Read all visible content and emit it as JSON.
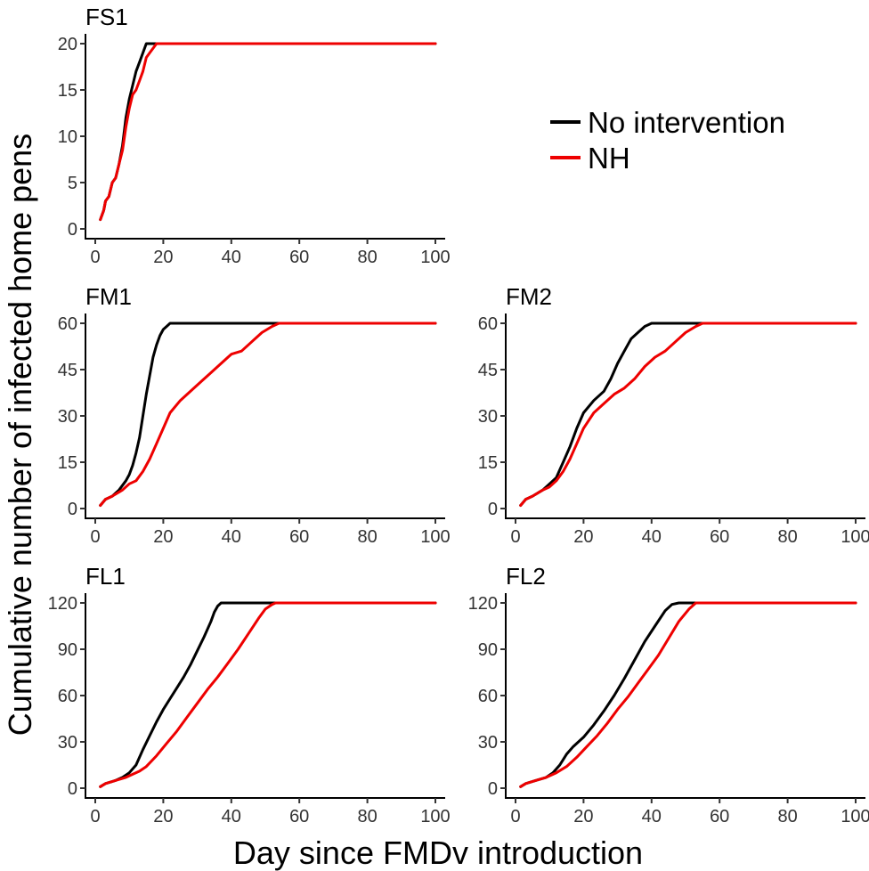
{
  "chart_data": {
    "type": "line",
    "xlabel": "Day since FMDv introduction",
    "ylabel": "Cumulative number of infected home pens",
    "legend": {
      "position": "top-right",
      "entries": [
        {
          "name": "No intervention",
          "color": "#000000"
        },
        {
          "name": "NH",
          "color": "#ee0000"
        }
      ]
    },
    "panels": [
      {
        "title": "FS1",
        "xlim": [
          0,
          100
        ],
        "ylim": [
          0,
          20
        ],
        "xticks": [
          0,
          20,
          40,
          60,
          80,
          100
        ],
        "yticks": [
          0,
          5,
          10,
          15,
          20
        ],
        "series": [
          {
            "name": "No intervention",
            "color": "#000000",
            "x": [
              1.5,
              2.5,
              3,
              4,
              5,
              6,
              7,
              8,
              9,
              10,
              11,
              12,
              13,
              14,
              15,
              16,
              17,
              100
            ],
            "y": [
              1,
              2,
              3,
              3.5,
              5,
              5.5,
              7,
              9,
              12,
              14,
              15.5,
              17,
              18,
              19,
              20,
              20,
              20,
              20
            ]
          },
          {
            "name": "NH",
            "color": "#ee0000",
            "x": [
              1.5,
              2.5,
              3,
              4,
              5,
              6,
              7,
              8,
              9,
              10,
              11,
              12,
              13,
              14,
              15,
              16,
              17,
              18,
              100
            ],
            "y": [
              1,
              2,
              3,
              3.5,
              5,
              5.5,
              7,
              8.5,
              11,
              13,
              14.5,
              15,
              16,
              17,
              18.5,
              19,
              19.5,
              20,
              20
            ]
          }
        ]
      },
      {
        "title": "FM1",
        "xlim": [
          0,
          100
        ],
        "ylim": [
          0,
          60
        ],
        "xticks": [
          0,
          20,
          40,
          60,
          80,
          100
        ],
        "yticks": [
          0,
          15,
          30,
          45,
          60
        ],
        "series": [
          {
            "name": "No intervention",
            "color": "#000000",
            "x": [
              1.5,
              3,
              5,
              7,
              9,
              10,
              11,
              12,
              13,
              14,
              15,
              16,
              17,
              18,
              19,
              20,
              21,
              22,
              54,
              100
            ],
            "y": [
              1,
              3,
              4,
              6,
              9,
              11,
              14,
              18,
              23,
              30,
              37,
              43,
              49,
              53,
              56,
              58,
              59,
              60,
              60,
              60
            ]
          },
          {
            "name": "NH",
            "color": "#ee0000",
            "x": [
              1.5,
              3,
              5,
              8,
              10,
              12,
              14,
              16,
              18,
              20,
              22,
              25,
              28,
              31,
              34,
              37,
              40,
              43,
              46,
              49,
              52,
              54,
              100
            ],
            "y": [
              1,
              3,
              4,
              6,
              8,
              9,
              12,
              16,
              21,
              26,
              31,
              35,
              38,
              41,
              44,
              47,
              50,
              51,
              54,
              57,
              59,
              60,
              60
            ]
          }
        ]
      },
      {
        "title": "FM2",
        "xlim": [
          0,
          100
        ],
        "ylim": [
          0,
          60
        ],
        "xticks": [
          0,
          20,
          40,
          60,
          80,
          100
        ],
        "yticks": [
          0,
          15,
          30,
          45,
          60
        ],
        "series": [
          {
            "name": "No intervention",
            "color": "#000000",
            "x": [
              1.5,
              3,
              5,
              8,
              10,
              12,
              14,
              16,
              18,
              20,
              23,
              26,
              28,
              30,
              32,
              34,
              36,
              38,
              40,
              45,
              100
            ],
            "y": [
              1,
              3,
              4,
              6,
              8,
              10,
              15,
              20,
              26,
              31,
              35,
              38,
              42,
              47,
              51,
              55,
              57,
              59,
              60,
              60,
              60
            ]
          },
          {
            "name": "NH",
            "color": "#ee0000",
            "x": [
              1.5,
              3,
              5,
              8,
              10,
              12,
              14,
              16,
              18,
              20,
              23,
              26,
              29,
              32,
              35,
              38,
              41,
              44,
              47,
              50,
              53,
              55,
              100
            ],
            "y": [
              1,
              3,
              4,
              6,
              7,
              9,
              12,
              16,
              21,
              26,
              31,
              34,
              37,
              39,
              42,
              46,
              49,
              51,
              54,
              57,
              59,
              60,
              60
            ]
          }
        ]
      },
      {
        "title": "FL1",
        "xlim": [
          0,
          100
        ],
        "ylim": [
          0,
          120
        ],
        "xticks": [
          0,
          20,
          40,
          60,
          80,
          100
        ],
        "yticks": [
          0,
          30,
          60,
          90,
          120
        ],
        "series": [
          {
            "name": "No intervention",
            "color": "#000000",
            "x": [
              1.5,
              3,
              6,
              8,
              10,
              12,
              14,
              16,
              18,
              20,
              22,
              24,
              26,
              28,
              30,
              32,
              34,
              35,
              36,
              37,
              100
            ],
            "y": [
              1,
              3,
              5,
              7,
              10,
              15,
              25,
              34,
              43,
              51,
              58,
              65,
              72,
              80,
              89,
              98,
              108,
              114,
              118,
              120,
              120
            ]
          },
          {
            "name": "NH",
            "color": "#ee0000",
            "x": [
              1.5,
              3,
              6,
              9,
              11,
              13,
              15,
              18,
              21,
              24,
              27,
              30,
              33,
              36,
              39,
              42,
              45,
              48,
              50,
              52,
              53,
              100
            ],
            "y": [
              1,
              3,
              5,
              7,
              9,
              11,
              14,
              21,
              29,
              37,
              46,
              55,
              64,
              72,
              81,
              90,
              100,
              110,
              116,
              119,
              120,
              120
            ]
          }
        ]
      },
      {
        "title": "FL2",
        "xlim": [
          0,
          100
        ],
        "ylim": [
          0,
          120
        ],
        "xticks": [
          0,
          20,
          40,
          60,
          80,
          100
        ],
        "yticks": [
          0,
          30,
          60,
          90,
          120
        ],
        "series": [
          {
            "name": "No intervention",
            "color": "#000000",
            "x": [
              1.5,
              3,
              6,
              9,
              11,
              13,
              15,
              17,
              20,
              23,
              26,
              29,
              32,
              35,
              38,
              41,
              44,
              46,
              48,
              100
            ],
            "y": [
              1,
              3,
              5,
              7,
              10,
              15,
              22,
              27,
              33,
              41,
              50,
              60,
              71,
              83,
              95,
              105,
              115,
              119,
              120,
              120
            ]
          },
          {
            "name": "NH",
            "color": "#ee0000",
            "x": [
              1.5,
              3,
              6,
              9,
              12,
              15,
              18,
              21,
              24,
              27,
              30,
              33,
              36,
              39,
              42,
              45,
              48,
              51,
              53,
              100
            ],
            "y": [
              1,
              3,
              5,
              7,
              10,
              14,
              20,
              27,
              34,
              42,
              51,
              59,
              68,
              77,
              86,
              97,
              108,
              116,
              120,
              120
            ]
          }
        ]
      }
    ]
  }
}
